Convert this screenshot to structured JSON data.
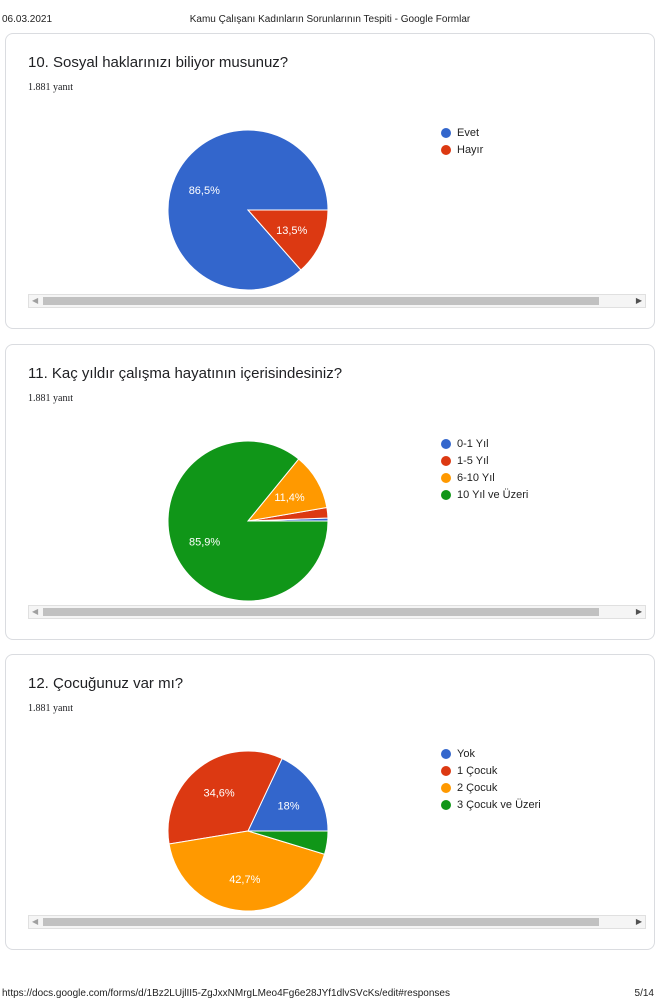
{
  "header": {
    "date": "06.03.2021",
    "title": "Kamu Çalışanı Kadınların Sorunlarının Tespiti - Google Formlar"
  },
  "footer": {
    "url": "https://docs.google.com/forms/d/1Bz2LUjlII5-ZgJxxNMrgLMeo4Fg6e28JYf1dlvSVcKs/edit#responses",
    "page": "5/14"
  },
  "icons": {
    "scroll_left": "triangle-left-icon",
    "scroll_right": "triangle-right-icon"
  },
  "chart_data": [
    {
      "type": "pie",
      "title": "10. Sosyal haklarınızı biliyor musunuz?",
      "response_count": "1.881 yanıt",
      "categories": [
        "Evet",
        "Hayır"
      ],
      "values": [
        86.5,
        13.5
      ],
      "labels": [
        "86,5%",
        "13,5%"
      ],
      "colors": [
        "#3366cc",
        "#dc3912"
      ],
      "legend": "right"
    },
    {
      "type": "pie",
      "title": "11. Kaç yıldır çalışma hayatının içerisindesiniz?",
      "response_count": "1.881 yanıt",
      "categories": [
        "0-1 Yıl",
        "1-5 Yıl",
        "6-10 Yıl",
        "10 Yıl ve Üzeri"
      ],
      "values": [
        0.6,
        2.1,
        11.4,
        85.9
      ],
      "labels": [
        "",
        "",
        "11,4%",
        "85,9%"
      ],
      "colors": [
        "#3366cc",
        "#dc3912",
        "#ff9900",
        "#109618"
      ],
      "legend": "right"
    },
    {
      "type": "pie",
      "title": "12. Çocuğunuz var mı?",
      "response_count": "1.881 yanıt",
      "categories": [
        "Yok",
        "1 Çocuk",
        "2 Çocuk",
        "3 Çocuk ve Üzeri"
      ],
      "values": [
        18.0,
        34.6,
        42.7,
        4.7
      ],
      "labels": [
        "18%",
        "34,6%",
        "42,7%",
        ""
      ],
      "colors": [
        "#3366cc",
        "#dc3912",
        "#ff9900",
        "#109618"
      ],
      "legend": "right"
    }
  ]
}
